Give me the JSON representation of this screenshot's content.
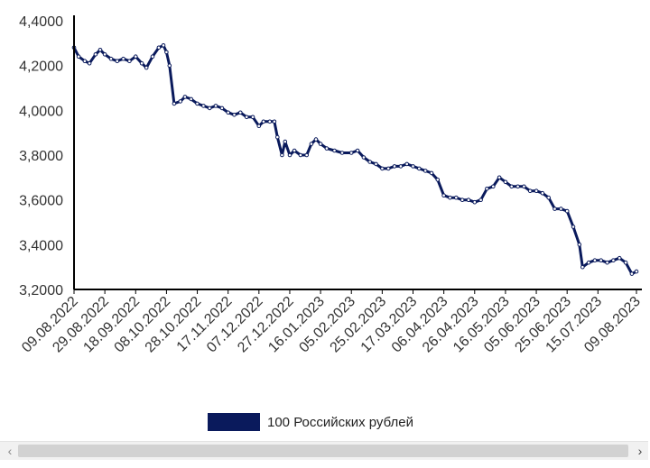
{
  "chart_data": {
    "type": "line",
    "title": "",
    "xlabel": "",
    "ylabel": "",
    "ylim": [
      3.2,
      4.4
    ],
    "y_ticks": [
      "3,2000",
      "3,4000",
      "3,6000",
      "3,8000",
      "4,0000",
      "4,2000",
      "4,4000"
    ],
    "x_ticks": [
      "09.08.2022",
      "29.08.2022",
      "18.09.2022",
      "08.10.2022",
      "28.10.2022",
      "17.11.2022",
      "07.12.2022",
      "27.12.2022",
      "16.01.2023",
      "05.02.2023",
      "25.02.2023",
      "17.03.2023",
      "06.04.2023",
      "26.04.2023",
      "16.05.2023",
      "05.06.2023",
      "25.06.2023",
      "15.07.2023",
      "09.08.2023"
    ],
    "legend_position": "bottom-center",
    "grid": false,
    "series": [
      {
        "name": "100 Российских рублей",
        "color": "#0a1a5c",
        "points": [
          [
            "09.08.2022",
            4.28
          ],
          [
            "12.08.2022",
            4.24
          ],
          [
            "16.08.2022",
            4.22
          ],
          [
            "19.08.2022",
            4.21
          ],
          [
            "23.08.2022",
            4.25
          ],
          [
            "26.08.2022",
            4.27
          ],
          [
            "29.08.2022",
            4.25
          ],
          [
            "02.09.2022",
            4.23
          ],
          [
            "06.09.2022",
            4.22
          ],
          [
            "10.09.2022",
            4.23
          ],
          [
            "14.09.2022",
            4.22
          ],
          [
            "18.09.2022",
            4.24
          ],
          [
            "22.09.2022",
            4.21
          ],
          [
            "25.09.2022",
            4.19
          ],
          [
            "29.09.2022",
            4.24
          ],
          [
            "03.10.2022",
            4.28
          ],
          [
            "06.10.2022",
            4.29
          ],
          [
            "08.10.2022",
            4.26
          ],
          [
            "10.10.2022",
            4.2
          ],
          [
            "13.10.2022",
            4.03
          ],
          [
            "17.10.2022",
            4.04
          ],
          [
            "20.10.2022",
            4.06
          ],
          [
            "24.10.2022",
            4.05
          ],
          [
            "28.10.2022",
            4.03
          ],
          [
            "01.11.2022",
            4.02
          ],
          [
            "05.11.2022",
            4.01
          ],
          [
            "09.11.2022",
            4.02
          ],
          [
            "13.11.2022",
            4.01
          ],
          [
            "17.11.2022",
            3.99
          ],
          [
            "21.11.2022",
            3.98
          ],
          [
            "25.11.2022",
            3.99
          ],
          [
            "29.11.2022",
            3.97
          ],
          [
            "03.12.2022",
            3.97
          ],
          [
            "07.12.2022",
            3.93
          ],
          [
            "10.12.2022",
            3.95
          ],
          [
            "14.12.2022",
            3.95
          ],
          [
            "17.12.2022",
            3.95
          ],
          [
            "19.12.2022",
            3.88
          ],
          [
            "22.12.2022",
            3.8
          ],
          [
            "24.12.2022",
            3.86
          ],
          [
            "27.12.2022",
            3.8
          ],
          [
            "30.12.2022",
            3.82
          ],
          [
            "03.01.2023",
            3.8
          ],
          [
            "07.01.2023",
            3.8
          ],
          [
            "10.01.2023",
            3.85
          ],
          [
            "13.01.2023",
            3.87
          ],
          [
            "16.01.2023",
            3.85
          ],
          [
            "20.01.2023",
            3.83
          ],
          [
            "25.01.2023",
            3.82
          ],
          [
            "30.01.2023",
            3.81
          ],
          [
            "05.02.2023",
            3.81
          ],
          [
            "09.02.2023",
            3.82
          ],
          [
            "13.02.2023",
            3.79
          ],
          [
            "17.02.2023",
            3.77
          ],
          [
            "21.02.2023",
            3.76
          ],
          [
            "25.02.2023",
            3.74
          ],
          [
            "01.03.2023",
            3.74
          ],
          [
            "05.03.2023",
            3.75
          ],
          [
            "09.03.2023",
            3.75
          ],
          [
            "13.03.2023",
            3.76
          ],
          [
            "17.03.2023",
            3.75
          ],
          [
            "21.03.2023",
            3.74
          ],
          [
            "25.03.2023",
            3.73
          ],
          [
            "29.03.2023",
            3.72
          ],
          [
            "02.04.2023",
            3.69
          ],
          [
            "06.04.2023",
            3.62
          ],
          [
            "10.04.2023",
            3.61
          ],
          [
            "14.04.2023",
            3.61
          ],
          [
            "18.04.2023",
            3.6
          ],
          [
            "22.04.2023",
            3.6
          ],
          [
            "26.04.2023",
            3.59
          ],
          [
            "30.04.2023",
            3.6
          ],
          [
            "04.05.2023",
            3.65
          ],
          [
            "08.05.2023",
            3.66
          ],
          [
            "12.05.2023",
            3.7
          ],
          [
            "16.05.2023",
            3.68
          ],
          [
            "20.05.2023",
            3.66
          ],
          [
            "24.05.2023",
            3.66
          ],
          [
            "28.05.2023",
            3.66
          ],
          [
            "01.06.2023",
            3.64
          ],
          [
            "05.06.2023",
            3.64
          ],
          [
            "09.06.2023",
            3.63
          ],
          [
            "13.06.2023",
            3.61
          ],
          [
            "17.06.2023",
            3.56
          ],
          [
            "21.06.2023",
            3.56
          ],
          [
            "25.06.2023",
            3.55
          ],
          [
            "29.06.2023",
            3.48
          ],
          [
            "03.07.2023",
            3.4
          ],
          [
            "05.07.2023",
            3.3
          ],
          [
            "09.07.2023",
            3.32
          ],
          [
            "13.07.2023",
            3.33
          ],
          [
            "17.07.2023",
            3.33
          ],
          [
            "21.07.2023",
            3.32
          ],
          [
            "25.07.2023",
            3.33
          ],
          [
            "29.07.2023",
            3.34
          ],
          [
            "02.08.2023",
            3.32
          ],
          [
            "06.08.2023",
            3.27
          ],
          [
            "09.08.2023",
            3.28
          ]
        ]
      }
    ]
  },
  "legend": {
    "label": "100 Российских рублей",
    "color": "#0a1a5c"
  },
  "scrollbar": {
    "left_arrow": "‹",
    "right_arrow": "›"
  }
}
